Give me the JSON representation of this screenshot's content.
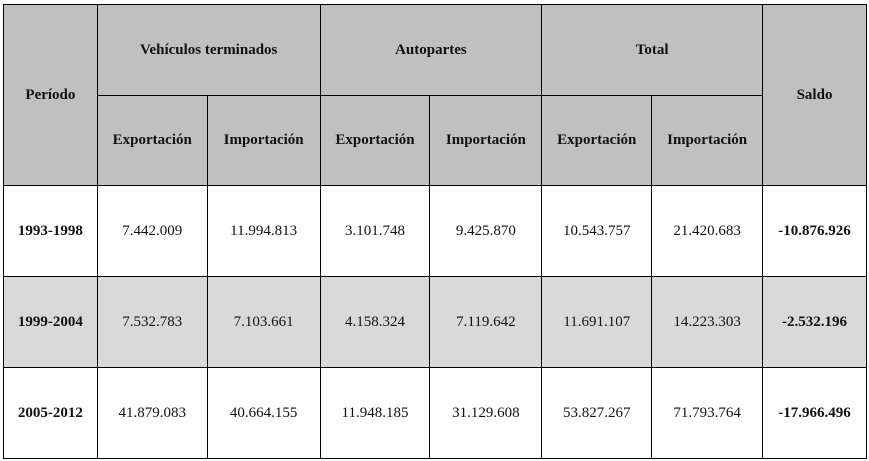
{
  "table": {
    "headers": {
      "period": "Período",
      "groups": [
        "Vehículos terminados",
        "Autopartes",
        "Total"
      ],
      "saldo": "Saldo",
      "sub": [
        "Exportación",
        "Importación",
        "Exportación",
        "Importación",
        "Exportación",
        "Importación"
      ]
    },
    "rows": [
      {
        "period": "1993-1998",
        "veh_exp": "7.442.009",
        "veh_imp": "11.994.813",
        "auto_exp": "3.101.748",
        "auto_imp": "9.425.870",
        "tot_exp": "10.543.757",
        "tot_imp": "21.420.683",
        "saldo": "-10.876.926"
      },
      {
        "period": "1999-2004",
        "veh_exp": "7.532.783",
        "veh_imp": "7.103.661",
        "auto_exp": "4.158.324",
        "auto_imp": "7.119.642",
        "tot_exp": "11.691.107",
        "tot_imp": "14.223.303",
        "saldo": "-2.532.196"
      },
      {
        "period": "2005-2012",
        "veh_exp": "41.879.083",
        "veh_imp": "40.664.155",
        "auto_exp": "11.948.185",
        "auto_imp": "31.129.608",
        "tot_exp": "53.827.267",
        "tot_imp": "71.793.764",
        "saldo": "-17.966.496"
      }
    ],
    "colors": {
      "header_bg": "#c0c0c0",
      "shaded_row_bg": "#d9d9d9",
      "border": "#000000"
    }
  }
}
